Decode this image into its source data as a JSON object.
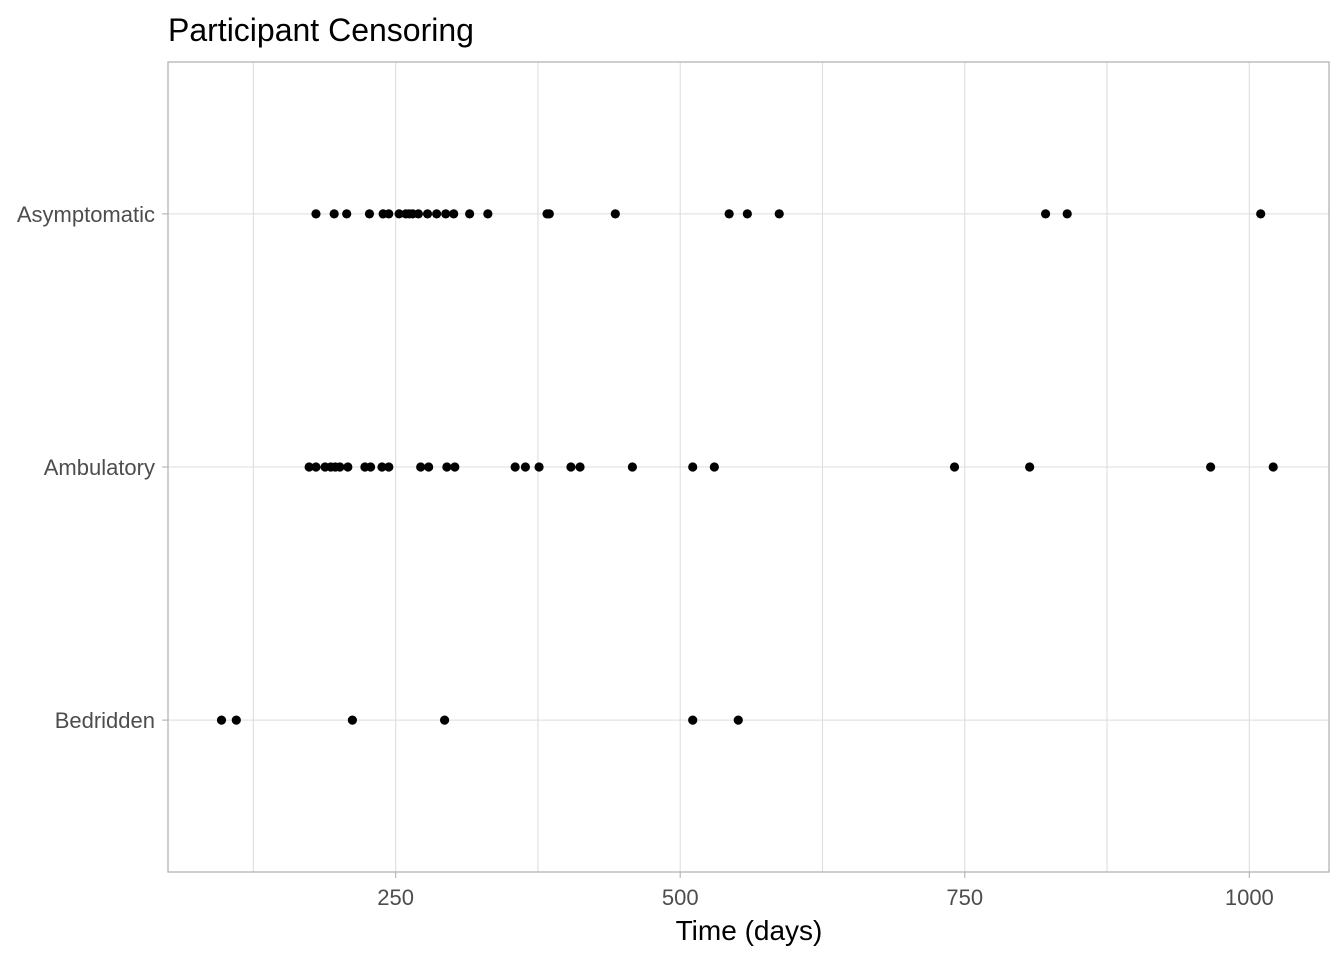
{
  "chart_data": {
    "type": "scatter",
    "title": "Participant Censoring",
    "xlabel": "Time (days)",
    "ylabel": "",
    "xlim": [
      50,
      1070
    ],
    "x_ticks": [
      250,
      500,
      750,
      1000
    ],
    "x_tick_labels": [
      "250",
      "500",
      "750",
      "1000"
    ],
    "x_minor_gridlines": [
      125,
      375,
      625,
      875
    ],
    "categories": [
      "Bedridden",
      "Ambulatory",
      "Asymptomatic"
    ],
    "grid": true,
    "point_color": "#000000",
    "series": [
      {
        "category": "Asymptomatic",
        "x": [
          180,
          196,
          207,
          227,
          239,
          244,
          253,
          259,
          262,
          265,
          270,
          278,
          286,
          294,
          301,
          315,
          331,
          383,
          385,
          443,
          543,
          559,
          587,
          821,
          840,
          1010
        ]
      },
      {
        "category": "Ambulatory",
        "x": [
          174,
          180,
          188,
          193,
          197,
          201,
          208,
          223,
          228,
          238,
          244,
          272,
          279,
          295,
          302,
          355,
          364,
          376,
          404,
          412,
          458,
          511,
          530,
          741,
          807,
          966,
          1021
        ]
      },
      {
        "category": "Bedridden",
        "x": [
          97,
          110,
          212,
          293,
          511,
          551
        ]
      }
    ]
  }
}
